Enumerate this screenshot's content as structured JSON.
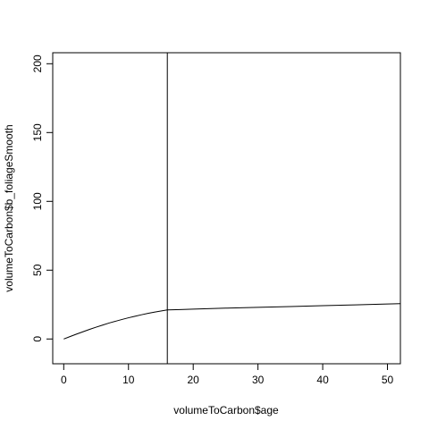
{
  "chart_data": {
    "type": "line",
    "title": "",
    "xlabel": "volumeToCarbon$age",
    "ylabel": "volumeToCarbon$b_foliageSmooth",
    "xlim": [
      -1.7,
      52
    ],
    "ylim": [
      -18,
      208
    ],
    "xticks": [
      0,
      10,
      20,
      30,
      40,
      50
    ],
    "yticks": [
      0,
      50,
      100,
      150,
      200
    ],
    "grid": false,
    "vline": 16,
    "series": [
      {
        "x": [
          0,
          1,
          2,
          3,
          4,
          5,
          6,
          7,
          8,
          9,
          10,
          11,
          12,
          13,
          14,
          15,
          16,
          18,
          20,
          25,
          30,
          35,
          40,
          45,
          50,
          52
        ],
        "values": [
          0,
          1.8,
          3.6,
          5.3,
          7.0,
          8.6,
          10.1,
          11.6,
          12.9,
          14.2,
          15.4,
          16.5,
          17.6,
          18.6,
          19.5,
          20.3,
          21.1,
          21.4,
          21.7,
          22.4,
          23.0,
          23.6,
          24.2,
          24.8,
          25.4,
          25.7
        ]
      }
    ]
  }
}
